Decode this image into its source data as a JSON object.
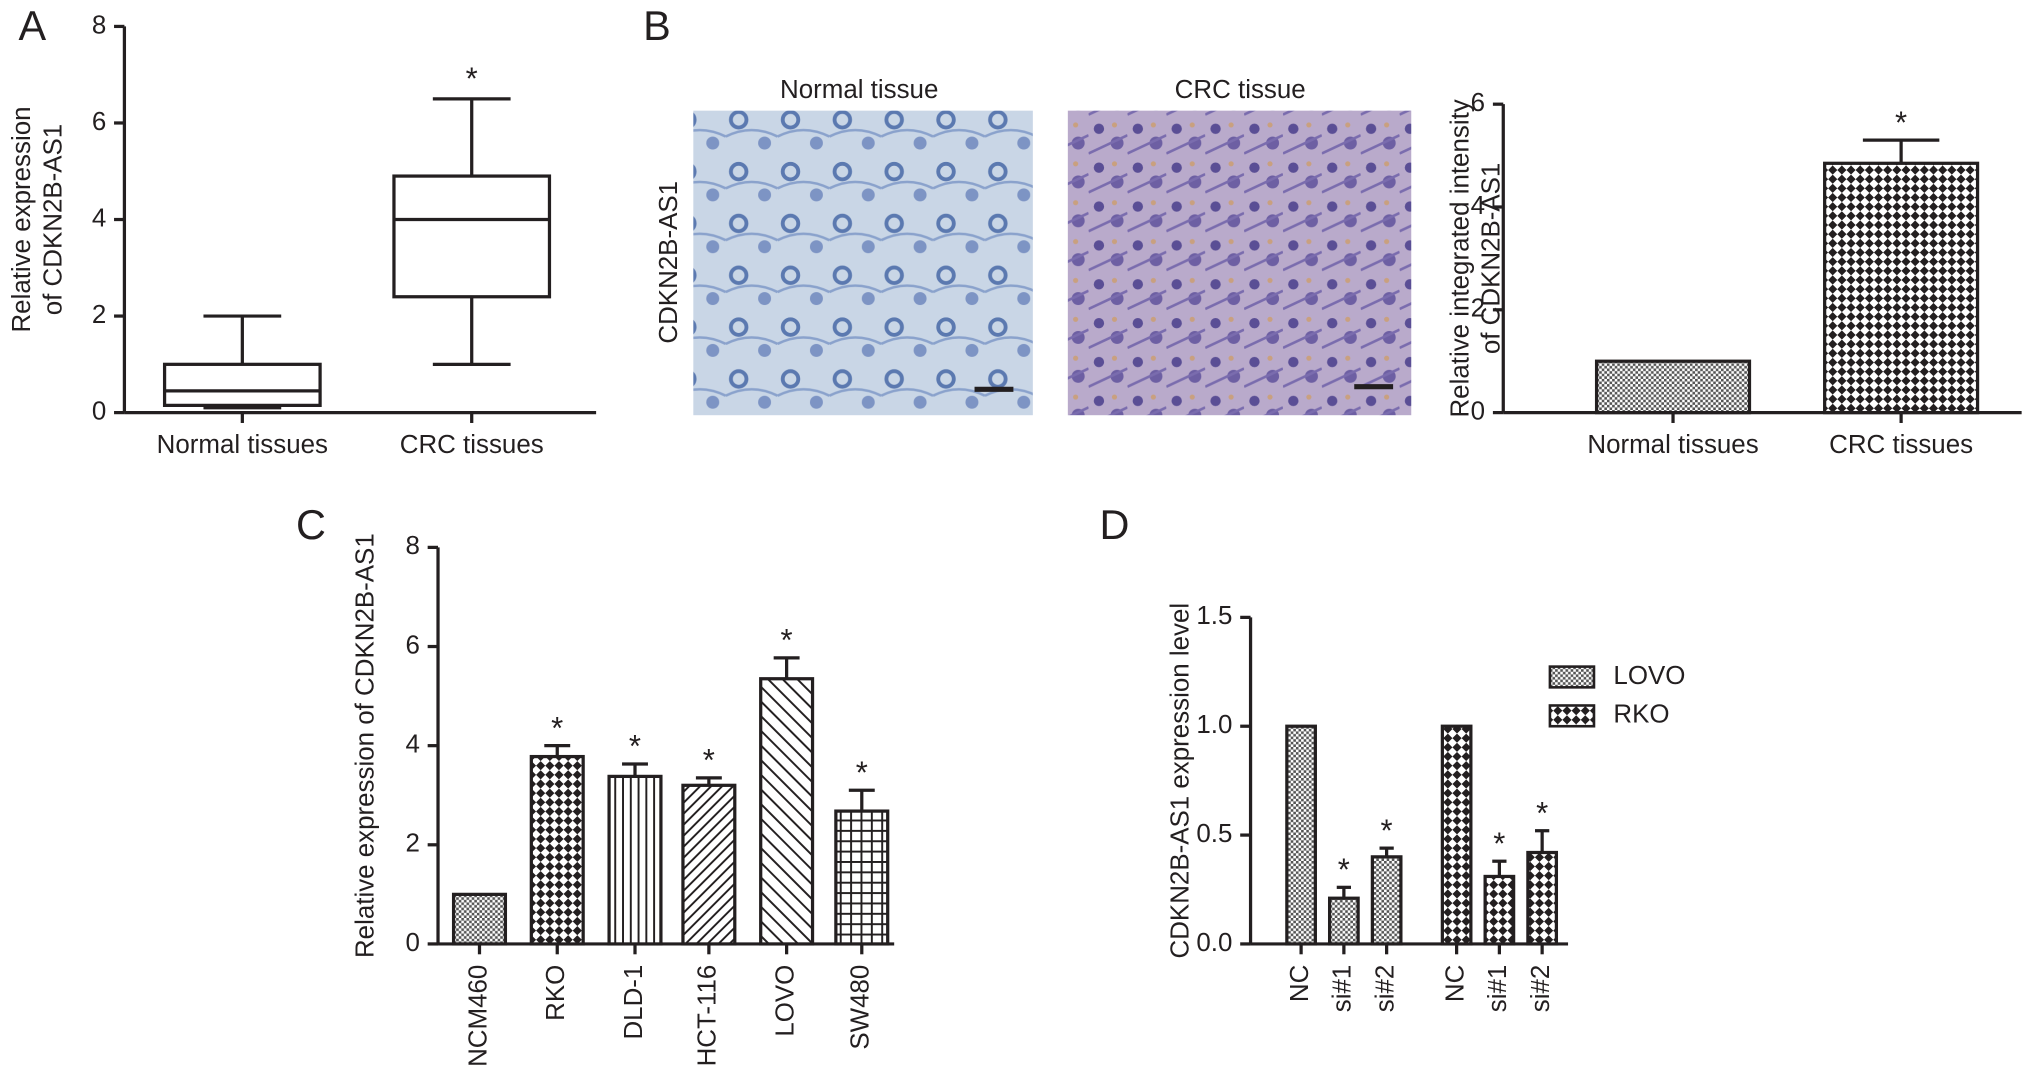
{
  "chart_data": [
    {
      "type": "box",
      "panel": "A",
      "ylabel": [
        "Relative expression",
        "of CDKN2B-AS1"
      ],
      "categories": [
        "Normal tissues",
        "CRC tissues"
      ],
      "boxes": [
        {
          "min": 0.1,
          "q1": 0.15,
          "median": 0.45,
          "q3": 1.0,
          "max": 2.0
        },
        {
          "min": 1.0,
          "q1": 2.4,
          "median": 4.0,
          "q3": 4.9,
          "max": 6.5
        }
      ],
      "significance": [
        null,
        "*"
      ],
      "color": "#231f20",
      "ylim": [
        0,
        8
      ],
      "yticks": [
        0,
        2,
        4,
        6,
        8
      ]
    },
    {
      "type": "bar",
      "panel": "B",
      "image_titles": [
        "Normal tissue",
        "CRC tissue"
      ],
      "image_ylabel": "CDKN2B-AS1",
      "ylabel": [
        "Relative integrated intensity",
        "of CDKN2B-AS1"
      ],
      "categories": [
        "Normal tissues",
        "CRC tissues"
      ],
      "values": [
        1.0,
        4.85
      ],
      "errors": [
        0,
        0.45
      ],
      "patterns": [
        "fine",
        "checker"
      ],
      "significance": [
        null,
        "*"
      ],
      "color": "#231f20",
      "ylim": [
        0,
        6
      ],
      "yticks": [
        0,
        2,
        4,
        6
      ]
    },
    {
      "type": "bar",
      "panel": "C",
      "ylabel": [
        "Relative expression of CDKN2B-AS1"
      ],
      "rotate_labels": true,
      "categories": [
        "NCM460",
        "RKO",
        "DLD-1",
        "HCT-116",
        "LOVO",
        "SW480"
      ],
      "values": [
        1.0,
        3.78,
        3.38,
        3.2,
        5.35,
        2.68
      ],
      "errors": [
        0,
        0.22,
        0.25,
        0.15,
        0.42,
        0.42
      ],
      "patterns": [
        "fine",
        "checker",
        "vertical",
        "diagonal",
        "diagonal-wide",
        "grid"
      ],
      "significance": [
        null,
        "*",
        "*",
        "*",
        "*",
        "*"
      ],
      "color": "#231f20",
      "ylim": [
        0,
        8
      ],
      "yticks": [
        0,
        2,
        4,
        6,
        8
      ]
    },
    {
      "type": "grouped_bar",
      "panel": "D",
      "ylabel": [
        "CDKN2B-AS1 expression level"
      ],
      "rotate_labels": true,
      "categories": [
        "NC",
        "si#1",
        "si#2"
      ],
      "series": [
        {
          "name": "LOVO",
          "pattern": "fine",
          "values": [
            1.0,
            0.21,
            0.4
          ],
          "errors": [
            0,
            0.05,
            0.04
          ],
          "significance": [
            null,
            "*",
            "*"
          ]
        },
        {
          "name": "RKO",
          "pattern": "checker",
          "values": [
            1.0,
            0.31,
            0.42
          ],
          "errors": [
            0,
            0.07,
            0.1
          ],
          "significance": [
            null,
            "*",
            "*"
          ]
        }
      ],
      "legend": "right",
      "color": "#231f20",
      "ylim": [
        0,
        1.5
      ],
      "yticks": [
        {
          "value": 0,
          "label": "0.0"
        },
        0.5,
        {
          "value": 1,
          "label": "1.0"
        },
        1.5
      ]
    }
  ]
}
